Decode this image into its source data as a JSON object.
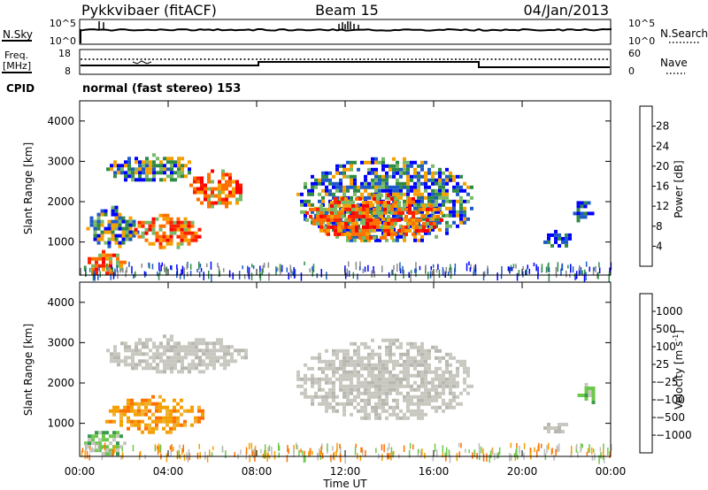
{
  "header": {
    "station": "Pykkvibaer (fitACF)",
    "beam": "Beam 15",
    "date": "04/Jan/2013"
  },
  "strips": {
    "nsky_label": "N.Sky",
    "nsearch_label": "N.Search",
    "nsky_ticks": [
      "10^5",
      "10^0"
    ],
    "nsearch_ticks": [
      "10^5",
      "10^0"
    ],
    "freq_label": "Freq.",
    "freq_unit": "[MHz]",
    "freq_ticks": [
      "18",
      "8"
    ],
    "nave_label": "Nave",
    "nave_ticks": [
      "60",
      "0"
    ],
    "cpid_label": "CPID",
    "cpid_text": "normal (fast stereo) 153"
  },
  "chart_data": [
    {
      "type": "heatmap",
      "name": "power-panel",
      "ylabel": "Slant Range [km]",
      "xlabel": "",
      "yticks": [
        "4000",
        "3000",
        "2000",
        "1000"
      ],
      "ytick_values": [
        4000,
        3000,
        2000,
        1000
      ],
      "ylim": [
        180,
        4500
      ],
      "xlim_hours": [
        0,
        24
      ],
      "colorbar": {
        "title": "Power [dB]",
        "ticks": [
          "4",
          "8",
          "12",
          "16",
          "20",
          "24",
          "28"
        ],
        "colors": [
          "#0000ff",
          "#1e5ac8",
          "#2f8a46",
          "#79b968",
          "#f5a000",
          "#ff7000",
          "#ff2000",
          "#ff0000"
        ]
      },
      "regions": [
        {
          "t0": 1.2,
          "t1": 5.2,
          "r0": 2500,
          "r1": 3200,
          "level": "medium"
        },
        {
          "t0": 4.8,
          "t1": 7.5,
          "r0": 1900,
          "r1": 2800,
          "level": "high"
        },
        {
          "t0": 0.3,
          "t1": 2.6,
          "r0": 900,
          "r1": 1900,
          "level": "medium"
        },
        {
          "t0": 2.3,
          "t1": 5.5,
          "r0": 900,
          "r1": 1700,
          "level": "high"
        },
        {
          "t0": 0.2,
          "t1": 2.0,
          "r0": 200,
          "r1": 800,
          "level": "high"
        },
        {
          "t0": 9.8,
          "t1": 17.8,
          "r0": 1000,
          "r1": 3100,
          "level": "medium"
        },
        {
          "t0": 10.2,
          "t1": 16.3,
          "r0": 1100,
          "r1": 2200,
          "level": "high"
        },
        {
          "t0": 20.8,
          "t1": 22.2,
          "r0": 900,
          "r1": 1300,
          "level": "low"
        },
        {
          "t0": 22.3,
          "t1": 23.2,
          "r0": 1500,
          "r1": 2100,
          "level": "low"
        }
      ]
    },
    {
      "type": "heatmap",
      "name": "velocity-panel",
      "ylabel": "Slant Range [km]",
      "xlabel": "Time UT",
      "yticks": [
        "4000",
        "3000",
        "2000",
        "1000"
      ],
      "ytick_values": [
        4000,
        3000,
        2000,
        1000
      ],
      "ylim": [
        180,
        4500
      ],
      "xlim_hours": [
        0,
        24
      ],
      "xticks": [
        "00:00",
        "04:00",
        "08:00",
        "12:00",
        "16:00",
        "20:00",
        "00:00"
      ],
      "xtick_values": [
        0,
        4,
        8,
        12,
        16,
        20,
        24
      ],
      "colorbar": {
        "title": "Velocity [m s",
        "title_sup": "-1",
        "title_end": "]",
        "ticks": [
          "1000",
          "500",
          "100",
          "25",
          "−25",
          "−100",
          "−500",
          "−1000"
        ],
        "colors": [
          "#1e3cc8",
          "#2e6ed8",
          "#3a9a50",
          "#6cc84a",
          "#c8c8c0",
          "#f5a000",
          "#ff7000",
          "#ff3000",
          "#ff0000"
        ]
      },
      "regions": [
        {
          "t0": 1.2,
          "t1": 7.5,
          "r0": 2300,
          "r1": 3200,
          "level": "near-zero"
        },
        {
          "t0": 9.8,
          "t1": 17.8,
          "r0": 1100,
          "r1": 3100,
          "level": "near-zero"
        },
        {
          "t0": 1.0,
          "t1": 5.5,
          "r0": 800,
          "r1": 1700,
          "level": "negative"
        },
        {
          "t0": 0.2,
          "t1": 2.0,
          "r0": 200,
          "r1": 900,
          "level": "positive"
        },
        {
          "t0": 22.5,
          "t1": 23.3,
          "r0": 1500,
          "r1": 2000,
          "level": "positive"
        },
        {
          "t0": 20.8,
          "t1": 22.0,
          "r0": 800,
          "r1": 1100,
          "level": "near-zero"
        }
      ]
    }
  ],
  "colors": {
    "axis": "#000000",
    "background": "#ffffff"
  }
}
